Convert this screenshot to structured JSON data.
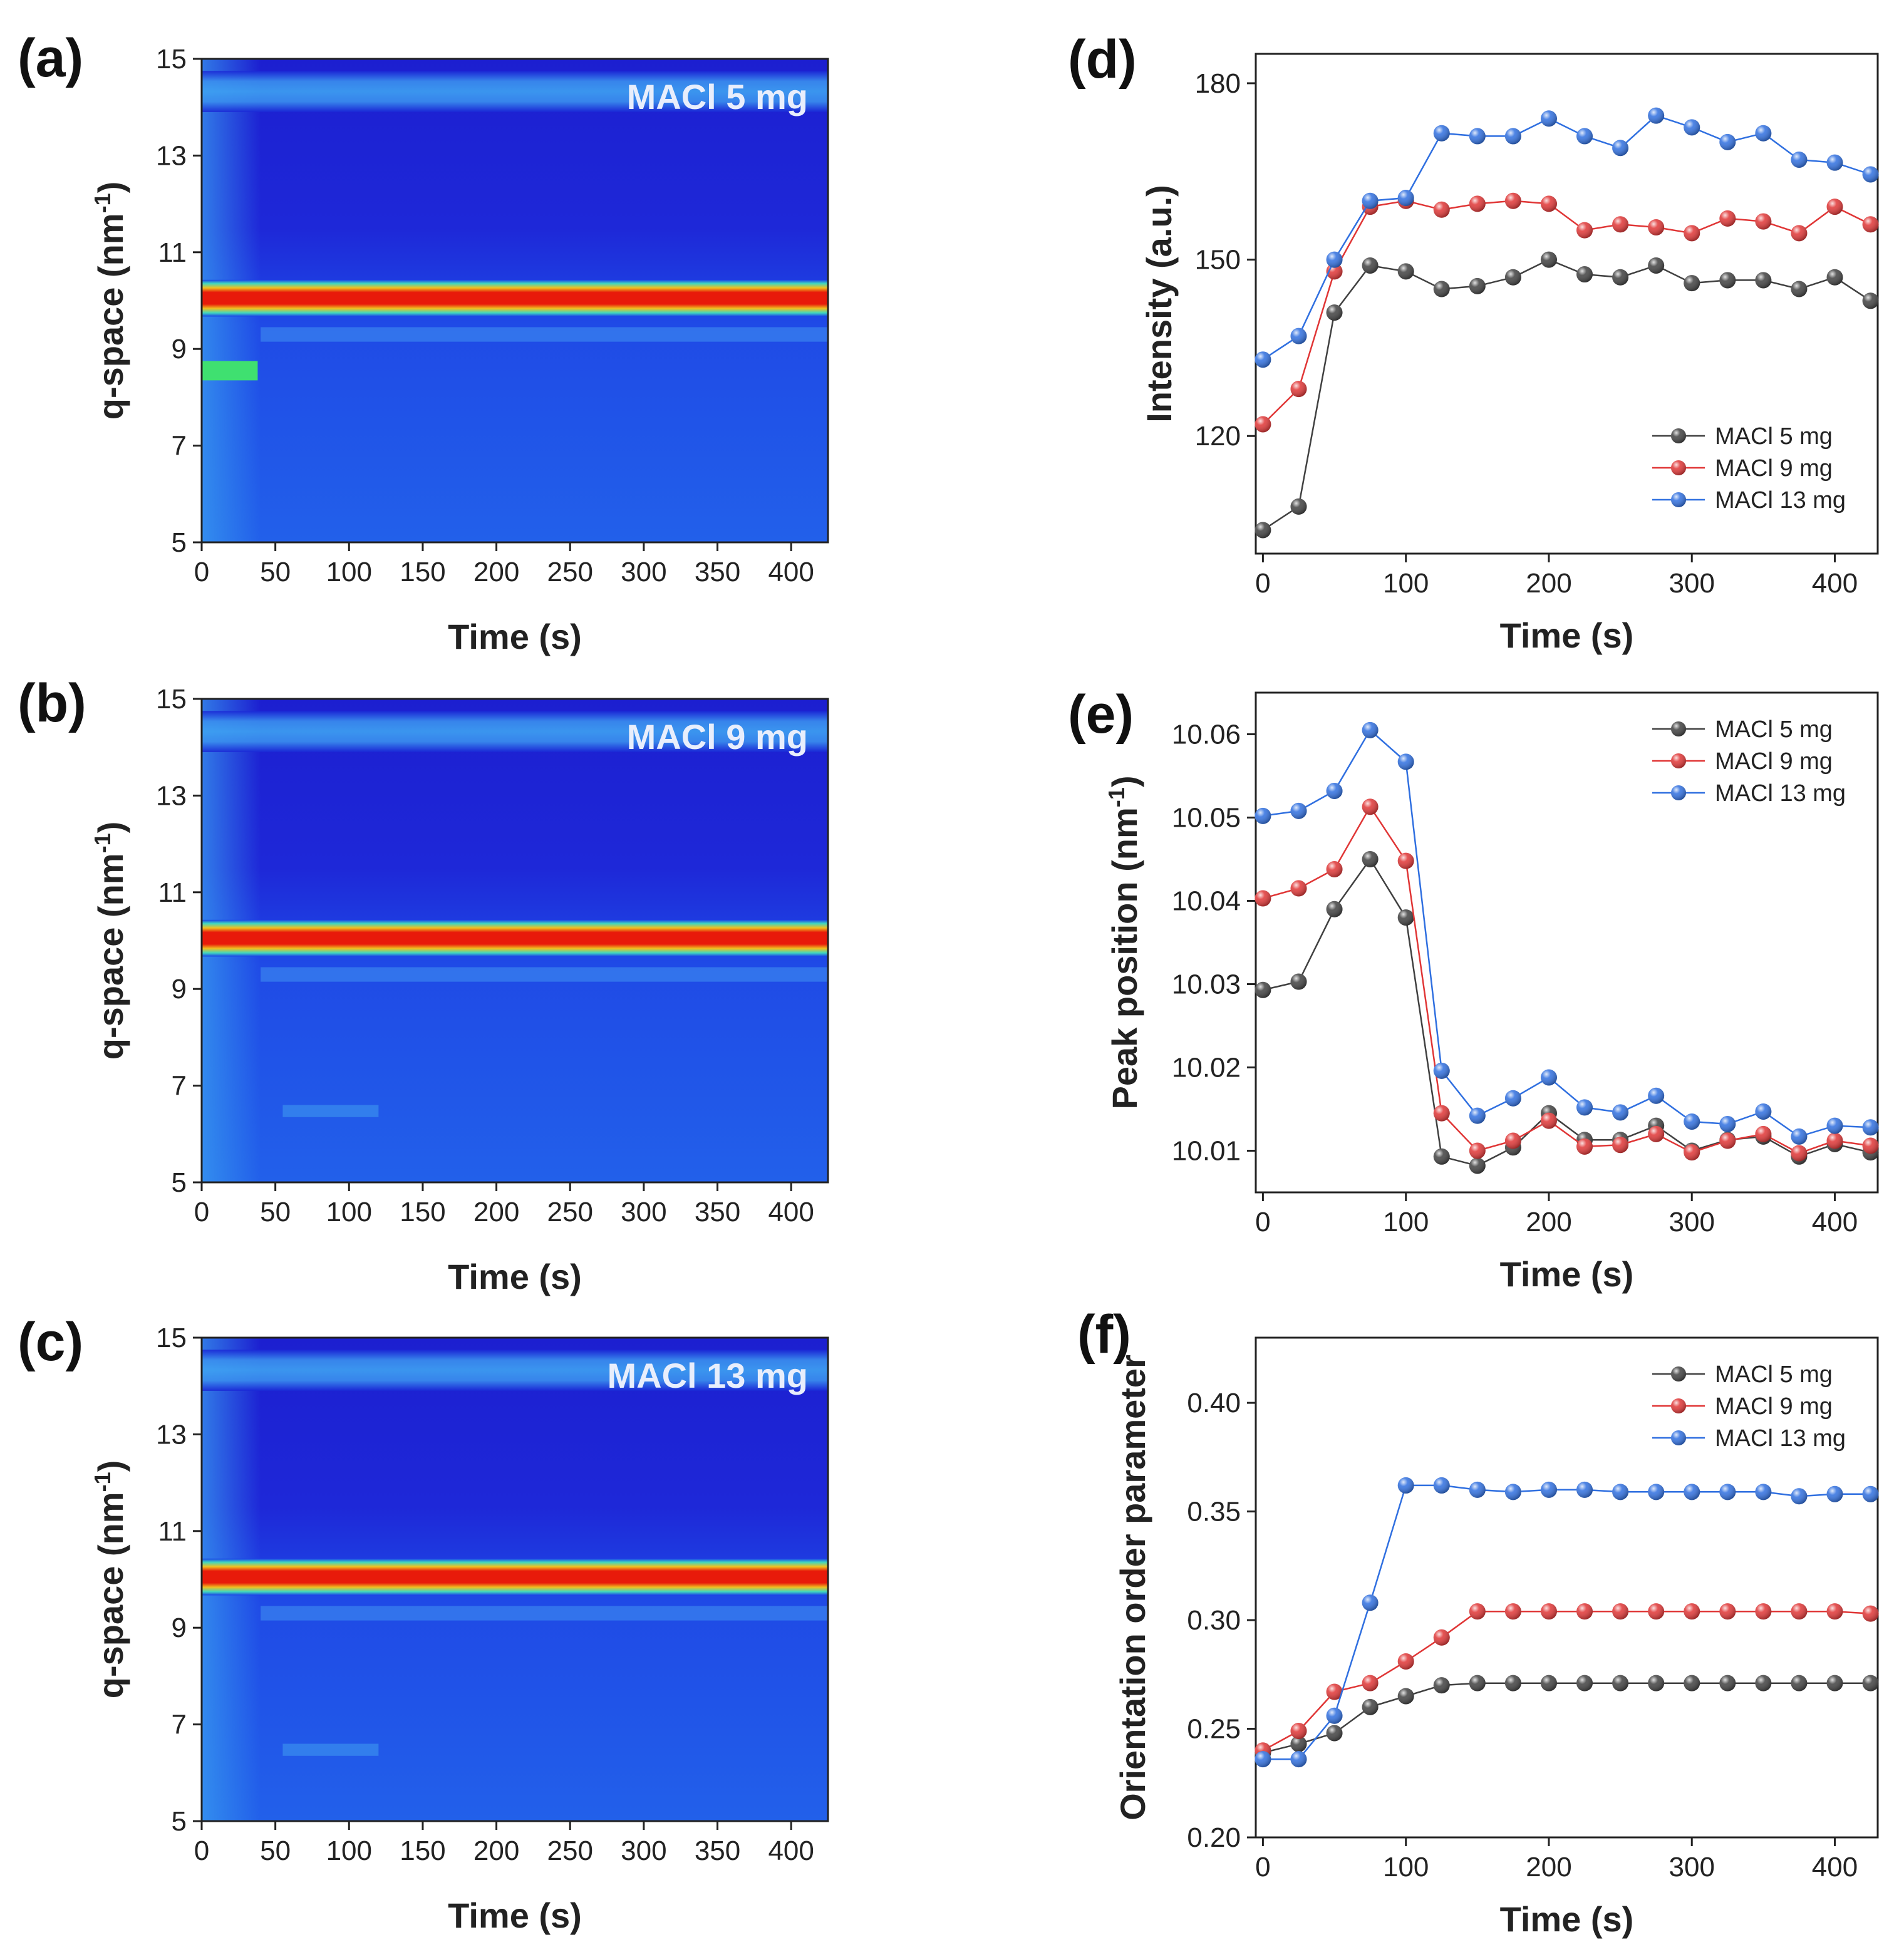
{
  "colors": {
    "MACl 5 mg": "#404040",
    "MACl 9 mg": "#e03535",
    "MACl 13 mg": "#2f6fe0",
    "axis": "#222222"
  },
  "chart_data": [
    {
      "id": "a",
      "type": "heatmap",
      "panel_label": "(a)",
      "annotation": "MACl 5 mg",
      "xlabel": "Time (s)",
      "ylabel": "q-space (nm⁻¹)",
      "ylabel_main": "q-space (nm",
      "ylabel_sup": "-1",
      "ylabel_close": ")",
      "xlim": [
        0,
        425
      ],
      "ylim": [
        5,
        15
      ],
      "xticks": [
        "0",
        "50",
        "100",
        "150",
        "200",
        "250",
        "300",
        "350",
        "400"
      ],
      "yticks": [
        "5",
        "7",
        "9",
        "11",
        "13",
        "15"
      ],
      "peak_q": 10.05
    },
    {
      "id": "b",
      "type": "heatmap",
      "panel_label": "(b)",
      "annotation": "MACl 9 mg",
      "xlabel": "Time (s)",
      "ylabel": "q-space (nm⁻¹)",
      "ylabel_main": "q-space (nm",
      "ylabel_sup": "-1",
      "ylabel_close": ")",
      "xlim": [
        0,
        425
      ],
      "ylim": [
        5,
        15
      ],
      "xticks": [
        "0",
        "50",
        "100",
        "150",
        "200",
        "250",
        "300",
        "350",
        "400"
      ],
      "yticks": [
        "5",
        "7",
        "9",
        "11",
        "13",
        "15"
      ],
      "peak_q": 10.05
    },
    {
      "id": "c",
      "type": "heatmap",
      "panel_label": "(c)",
      "annotation": "MACl 13 mg",
      "xlabel": "Time (s)",
      "ylabel": "q-space (nm⁻¹)",
      "ylabel_main": "q-space (nm",
      "ylabel_sup": "-1",
      "ylabel_close": ")",
      "xlim": [
        0,
        425
      ],
      "ylim": [
        5,
        15
      ],
      "xticks": [
        "0",
        "50",
        "100",
        "150",
        "200",
        "250",
        "300",
        "350",
        "400"
      ],
      "yticks": [
        "5",
        "7",
        "9",
        "11",
        "13",
        "15"
      ],
      "peak_q": 10.05
    },
    {
      "id": "d",
      "type": "line",
      "panel_label": "(d)",
      "xlabel": "Time (s)",
      "ylabel": "Intensity (a.u.)",
      "xlim": [
        -5,
        430
      ],
      "ylim": [
        100,
        185
      ],
      "xticks": [
        "0",
        "100",
        "200",
        "300",
        "400"
      ],
      "yticks": [
        "120",
        "150",
        "180"
      ],
      "legend_position": "bottom-right",
      "x": [
        0,
        25,
        50,
        75,
        100,
        125,
        150,
        175,
        200,
        225,
        250,
        275,
        300,
        325,
        350,
        375,
        400,
        425
      ],
      "series": [
        {
          "name": "MACl 5 mg",
          "values": [
            104,
            108,
            141,
            149,
            148,
            145,
            145.5,
            147,
            150,
            147.5,
            147,
            149,
            146,
            146.5,
            146.5,
            145,
            147,
            143
          ]
        },
        {
          "name": "MACl 9 mg",
          "values": [
            122,
            128,
            148,
            159,
            160,
            158.5,
            159.5,
            160,
            159.5,
            155,
            156,
            155.5,
            154.5,
            157,
            156.5,
            154.5,
            159,
            156
          ]
        },
        {
          "name": "MACl 13 mg",
          "values": [
            133,
            137,
            150,
            160,
            160.5,
            171.5,
            171,
            171,
            174,
            171,
            169,
            174.5,
            172.5,
            170,
            171.5,
            167,
            166.5,
            164.5
          ]
        }
      ]
    },
    {
      "id": "e",
      "type": "line",
      "panel_label": "(e)",
      "xlabel": "Time (s)",
      "ylabel": "Peak position (nm⁻¹)",
      "ylabel_main": "Peak position (nm",
      "ylabel_sup": "-1",
      "ylabel_close": ")",
      "xlim": [
        -5,
        430
      ],
      "ylim": [
        10.005,
        10.065
      ],
      "xticks": [
        "0",
        "100",
        "200",
        "300",
        "400"
      ],
      "yticks": [
        "10.01",
        "10.02",
        "10.03",
        "10.04",
        "10.05",
        "10.06"
      ],
      "legend_position": "top-right",
      "x": [
        0,
        25,
        50,
        75,
        100,
        125,
        150,
        175,
        200,
        225,
        250,
        275,
        300,
        325,
        350,
        375,
        400,
        425
      ],
      "series": [
        {
          "name": "MACl 5 mg",
          "values": [
            10.0293,
            10.0303,
            10.039,
            10.045,
            10.038,
            10.0093,
            10.0082,
            10.0104,
            10.0145,
            10.0113,
            10.0113,
            10.013,
            10.01,
            10.0113,
            10.0117,
            10.0093,
            10.0108,
            10.0098
          ]
        },
        {
          "name": "MACl 9 mg",
          "values": [
            10.0403,
            10.0415,
            10.0438,
            10.0513,
            10.0448,
            10.0145,
            10.01,
            10.0112,
            10.0136,
            10.0105,
            10.0107,
            10.012,
            10.0098,
            10.0112,
            10.012,
            10.0097,
            10.0112,
            10.0106
          ]
        },
        {
          "name": "MACl 13 mg",
          "values": [
            10.0502,
            10.0508,
            10.0532,
            10.0605,
            10.0567,
            10.0196,
            10.0142,
            10.0163,
            10.0188,
            10.0152,
            10.0146,
            10.0166,
            10.0135,
            10.0132,
            10.0147,
            10.0117,
            10.013,
            10.0128
          ]
        }
      ]
    },
    {
      "id": "f",
      "type": "line",
      "panel_label": "(f)",
      "xlabel": "Time (s)",
      "ylabel": "Orientation order parameter",
      "xlim": [
        -5,
        430
      ],
      "ylim": [
        0.2,
        0.43
      ],
      "xticks": [
        "0",
        "100",
        "200",
        "300",
        "400"
      ],
      "yticks": [
        "0.20",
        "0.25",
        "0.30",
        "0.35",
        "0.40"
      ],
      "legend_position": "top-right",
      "x": [
        0,
        25,
        50,
        75,
        100,
        125,
        150,
        175,
        200,
        225,
        250,
        275,
        300,
        325,
        350,
        375,
        400,
        425
      ],
      "series": [
        {
          "name": "MACl 5 mg",
          "values": [
            0.239,
            0.243,
            0.248,
            0.26,
            0.265,
            0.27,
            0.271,
            0.271,
            0.271,
            0.271,
            0.271,
            0.271,
            0.271,
            0.271,
            0.271,
            0.271,
            0.271,
            0.271
          ]
        },
        {
          "name": "MACl 9 mg",
          "values": [
            0.24,
            0.249,
            0.267,
            0.271,
            0.281,
            0.292,
            0.304,
            0.304,
            0.304,
            0.304,
            0.304,
            0.304,
            0.304,
            0.304,
            0.304,
            0.304,
            0.304,
            0.303
          ]
        },
        {
          "name": "MACl 13 mg",
          "values": [
            0.236,
            0.236,
            0.256,
            0.308,
            0.362,
            0.362,
            0.36,
            0.359,
            0.36,
            0.36,
            0.359,
            0.359,
            0.359,
            0.359,
            0.359,
            0.357,
            0.358,
            0.358
          ]
        }
      ]
    }
  ]
}
